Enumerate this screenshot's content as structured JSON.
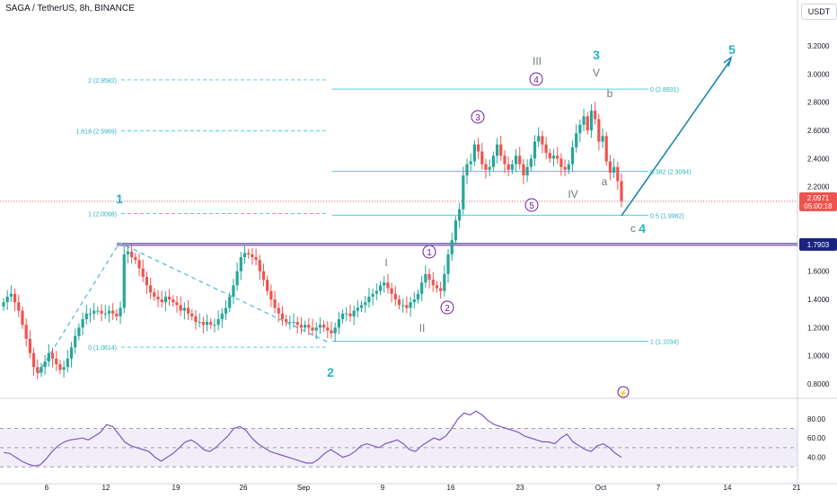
{
  "header": {
    "title": "SAGA / TetherUS, 8h, BINANCE",
    "currency": "USDT"
  },
  "price_axis": {
    "ticks": [
      "3.2000",
      "3.0000",
      "2.8000",
      "2.6000",
      "2.4000",
      "2.2000",
      "1.8000",
      "1.6000",
      "1.4000",
      "1.2000",
      "1.0000",
      "0.8000"
    ],
    "last_price": "2.0971",
    "countdown": "05:00:18",
    "level_label": "1.7903"
  },
  "rsi_axis": {
    "ticks": [
      "80.00",
      "60.00",
      "40.00"
    ]
  },
  "time_axis": {
    "ticks": [
      "6",
      "12",
      "19",
      "26",
      "Sep",
      "9",
      "16",
      "23",
      "Oct",
      "7",
      "14",
      "21"
    ]
  },
  "fib_labels": {
    "left": [
      "2 (2.9582)",
      "1.618 (2.5969)",
      "1 (2.0098)",
      "0 (1.0614)"
    ],
    "right": [
      "0 (2.8931)",
      "0.382 (2.3094)",
      "0.5 (1.9982)",
      "1 (1.1034)"
    ]
  },
  "wave_labels": {
    "major": [
      "1",
      "2",
      "3",
      "4",
      "5"
    ],
    "roman": [
      "I",
      "II",
      "III",
      "IV",
      "V"
    ],
    "circled": [
      "1",
      "2",
      "3",
      "4",
      "5"
    ],
    "abc": [
      "a",
      "b",
      "c"
    ]
  },
  "colors": {
    "up": "#26a69a",
    "down": "#ef5350",
    "teal": "#26c6da",
    "purple": "#7b1fa2",
    "blue": "#2962ff",
    "rsi": "#7e57c2",
    "navy": "#1a237e"
  },
  "chart_data": {
    "type": "candlestick",
    "symbol": "SAGA / TetherUS",
    "interval": "8h",
    "exchange": "BINANCE",
    "x_ticks": [
      "6",
      "12",
      "19",
      "26",
      "Sep",
      "9",
      "16",
      "23",
      "Oct",
      "7",
      "14",
      "21"
    ],
    "ylim": [
      0.8,
      3.2
    ],
    "last_close": 2.0971,
    "horizontal_level": 1.7903,
    "closes": [
      1.38,
      1.42,
      1.44,
      1.38,
      1.32,
      1.22,
      1.12,
      1.02,
      0.92,
      0.88,
      0.92,
      0.96,
      1.02,
      0.98,
      0.94,
      0.9,
      0.92,
      0.98,
      1.06,
      1.14,
      1.2,
      1.26,
      1.3,
      1.3,
      1.32,
      1.32,
      1.3,
      1.3,
      1.32,
      1.3,
      1.28,
      1.34,
      1.72,
      1.74,
      1.7,
      1.68,
      1.62,
      1.56,
      1.5,
      1.45,
      1.42,
      1.4,
      1.38,
      1.42,
      1.4,
      1.38,
      1.36,
      1.32,
      1.34,
      1.3,
      1.28,
      1.24,
      1.24,
      1.22,
      1.24,
      1.22,
      1.22,
      1.26,
      1.3,
      1.34,
      1.42,
      1.5,
      1.6,
      1.7,
      1.73,
      1.72,
      1.7,
      1.68,
      1.6,
      1.54,
      1.46,
      1.4,
      1.34,
      1.3,
      1.26,
      1.24,
      1.24,
      1.24,
      1.22,
      1.2,
      1.22,
      1.2,
      1.18,
      1.2,
      1.22,
      1.2,
      1.18,
      1.16,
      1.2,
      1.26,
      1.3,
      1.3,
      1.28,
      1.32,
      1.34,
      1.36,
      1.38,
      1.42,
      1.44,
      1.46,
      1.5,
      1.52,
      1.48,
      1.44,
      1.4,
      1.36,
      1.36,
      1.34,
      1.38,
      1.4,
      1.44,
      1.52,
      1.58,
      1.54,
      1.5,
      1.48,
      1.46,
      1.58,
      1.72,
      1.82,
      1.96,
      2.04,
      2.28,
      2.36,
      2.38,
      2.5,
      2.45,
      2.36,
      2.32,
      2.34,
      2.42,
      2.5,
      2.42,
      2.36,
      2.32,
      2.36,
      2.42,
      2.36,
      2.28,
      2.34,
      2.4,
      2.52,
      2.56,
      2.5,
      2.44,
      2.4,
      2.42,
      2.4,
      2.34,
      2.32,
      2.36,
      2.48,
      2.58,
      2.64,
      2.7,
      2.6,
      2.74,
      2.68,
      2.52,
      2.56,
      2.38,
      2.3,
      2.34,
      2.24,
      2.1
    ],
    "rsi": {
      "ticks": [
        80,
        60,
        40
      ],
      "values": [
        45,
        44,
        40,
        36,
        33,
        31,
        32,
        38,
        46,
        52,
        56,
        58,
        59,
        60,
        58,
        62,
        66,
        74,
        72,
        64,
        56,
        52,
        50,
        48,
        46,
        40,
        36,
        40,
        44,
        50,
        56,
        58,
        54,
        48,
        46,
        50,
        56,
        62,
        70,
        72,
        68,
        60,
        54,
        50,
        46,
        44,
        42,
        40,
        38,
        36,
        34,
        34,
        38,
        44,
        48,
        44,
        40,
        42,
        46,
        52,
        54,
        52,
        50,
        54,
        56,
        58,
        54,
        48,
        46,
        52,
        56,
        60,
        58,
        62,
        70,
        80,
        86,
        84,
        88,
        84,
        78,
        74,
        72,
        70,
        68,
        66,
        62,
        60,
        58,
        56,
        56,
        54,
        60,
        64,
        56,
        52,
        48,
        46,
        52,
        54,
        50,
        44,
        40
      ]
    }
  }
}
